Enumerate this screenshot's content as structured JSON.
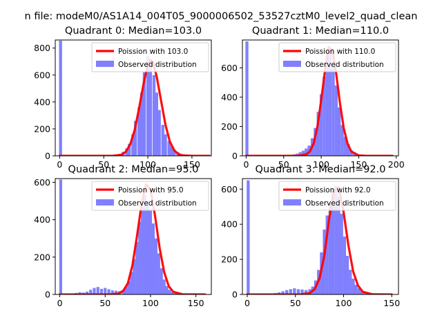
{
  "figure": {
    "suptitle": "n file: modeM0/AS1A14_004T05_9000006502_53527cztM0_level2_quad_clean"
  },
  "colors": {
    "hist": "#8080ff",
    "poisson": "#ff0000",
    "axis": "#000000",
    "background": "#ffffff"
  },
  "chart_data": [
    {
      "type": "bar",
      "title": "Quadrant 0: Median=103.0",
      "median": 103.0,
      "legend": [
        "Poission with 103.0",
        "Observed distribution"
      ],
      "legend_position": "top-right",
      "xlim": [
        -5,
        172
      ],
      "ylim": [
        0,
        860
      ],
      "xticks": [
        0,
        50,
        100,
        150
      ],
      "yticks": [
        0,
        200,
        400,
        600,
        800
      ],
      "bin_width": 3.4,
      "bins_x": [
        1,
        52,
        55,
        59,
        62,
        66,
        69,
        72,
        76,
        79,
        83,
        86,
        90,
        93,
        96,
        100,
        103,
        107,
        110,
        113,
        117,
        120,
        124,
        127,
        130,
        134,
        137,
        141,
        144
      ],
      "bins_y": [
        855,
        2,
        4,
        6,
        8,
        10,
        15,
        30,
        55,
        90,
        160,
        260,
        360,
        470,
        620,
        740,
        720,
        600,
        470,
        340,
        230,
        160,
        110,
        70,
        45,
        28,
        15,
        8,
        4
      ],
      "poisson_x": [
        0,
        60,
        70,
        75,
        80,
        85,
        90,
        95,
        100,
        103,
        106,
        110,
        115,
        120,
        125,
        130,
        135,
        140,
        150,
        170
      ],
      "poisson_y": [
        0,
        0,
        8,
        30,
        85,
        190,
        350,
        530,
        680,
        710,
        690,
        590,
        410,
        230,
        105,
        40,
        12,
        3,
        0,
        0
      ]
    },
    {
      "type": "bar",
      "title": "Quadrant 1: Median=110.0",
      "median": 110.0,
      "legend": [
        "Poission with 110.0",
        "Observed distribution"
      ],
      "legend_position": "top-right",
      "xlim": [
        -5,
        203
      ],
      "ylim": [
        0,
        790
      ],
      "xticks": [
        0,
        50,
        100,
        150,
        200
      ],
      "yticks": [
        0,
        200,
        400,
        600
      ],
      "bin_width": 4,
      "bins_x": [
        1,
        60,
        64,
        68,
        72,
        76,
        80,
        84,
        88,
        92,
        96,
        100,
        104,
        108,
        112,
        116,
        120,
        124,
        128,
        132,
        136,
        140,
        144,
        148,
        152,
        156
      ],
      "bins_y": [
        780,
        5,
        10,
        15,
        25,
        35,
        50,
        70,
        120,
        190,
        300,
        420,
        540,
        680,
        720,
        620,
        480,
        330,
        210,
        130,
        80,
        40,
        25,
        12,
        6,
        3
      ],
      "poisson_x": [
        0,
        70,
        80,
        85,
        90,
        95,
        100,
        105,
        110,
        115,
        120,
        125,
        130,
        135,
        140,
        150,
        160,
        170,
        195
      ],
      "poisson_y": [
        0,
        0,
        10,
        30,
        85,
        200,
        380,
        580,
        740,
        720,
        560,
        360,
        190,
        85,
        30,
        3,
        0,
        0,
        0
      ]
    },
    {
      "type": "bar",
      "title": "Quadrant 2: Median=95.0",
      "median": 95.0,
      "legend": [
        "Poission with 95.0",
        "Observed distribution"
      ],
      "legend_position": "top-right",
      "xlim": [
        -5,
        167
      ],
      "ylim": [
        0,
        620
      ],
      "xticks": [
        0,
        50,
        100,
        150
      ],
      "yticks": [
        0,
        200,
        400,
        600
      ],
      "bin_width": 3.2,
      "bins_x": [
        1,
        10,
        14,
        18,
        22,
        26,
        30,
        34,
        38,
        42,
        46,
        50,
        54,
        58,
        62,
        66,
        70,
        73,
        76,
        79,
        82,
        85,
        88,
        91,
        94,
        97,
        100,
        103,
        106,
        109,
        112,
        115,
        118,
        121,
        124,
        127,
        130
      ],
      "bins_y": [
        615,
        2,
        5,
        8,
        12,
        10,
        15,
        25,
        35,
        40,
        30,
        35,
        28,
        22,
        20,
        18,
        25,
        40,
        70,
        120,
        190,
        280,
        390,
        470,
        530,
        500,
        450,
        380,
        300,
        220,
        140,
        80,
        45,
        25,
        12,
        6,
        3
      ],
      "poisson_x": [
        0,
        55,
        65,
        70,
        75,
        80,
        85,
        90,
        95,
        100,
        105,
        110,
        115,
        120,
        125,
        135,
        160
      ],
      "poisson_y": [
        0,
        0,
        5,
        20,
        60,
        155,
        310,
        480,
        590,
        560,
        420,
        250,
        120,
        45,
        14,
        1,
        0
      ]
    },
    {
      "type": "bar",
      "title": "Quadrant 3: Median=92.0",
      "median": 92.0,
      "legend": [
        "Poission with 92.0",
        "Observed distribution"
      ],
      "legend_position": "top-right",
      "xlim": [
        -5,
        157
      ],
      "ylim": [
        0,
        660
      ],
      "xticks": [
        0,
        50,
        100,
        150
      ],
      "yticks": [
        0,
        200,
        400,
        600
      ],
      "bin_width": 3.1,
      "bins_x": [
        1,
        25,
        29,
        33,
        37,
        41,
        45,
        49,
        53,
        57,
        61,
        65,
        68,
        71,
        74,
        77,
        80,
        83,
        86,
        89,
        92,
        95,
        98,
        101,
        104,
        107,
        110,
        113,
        116,
        119,
        122,
        125,
        128,
        131
      ],
      "bins_y": [
        650,
        5,
        8,
        12,
        18,
        25,
        30,
        35,
        30,
        28,
        25,
        30,
        45,
        80,
        140,
        240,
        370,
        450,
        520,
        600,
        620,
        560,
        460,
        330,
        220,
        140,
        90,
        55,
        35,
        20,
        12,
        6,
        3,
        2
      ],
      "poisson_x": [
        0,
        55,
        65,
        70,
        75,
        80,
        85,
        90,
        95,
        100,
        105,
        110,
        115,
        120,
        130,
        150
      ],
      "poisson_y": [
        0,
        0,
        8,
        30,
        90,
        220,
        430,
        590,
        610,
        470,
        280,
        130,
        50,
        15,
        1,
        0
      ]
    }
  ]
}
